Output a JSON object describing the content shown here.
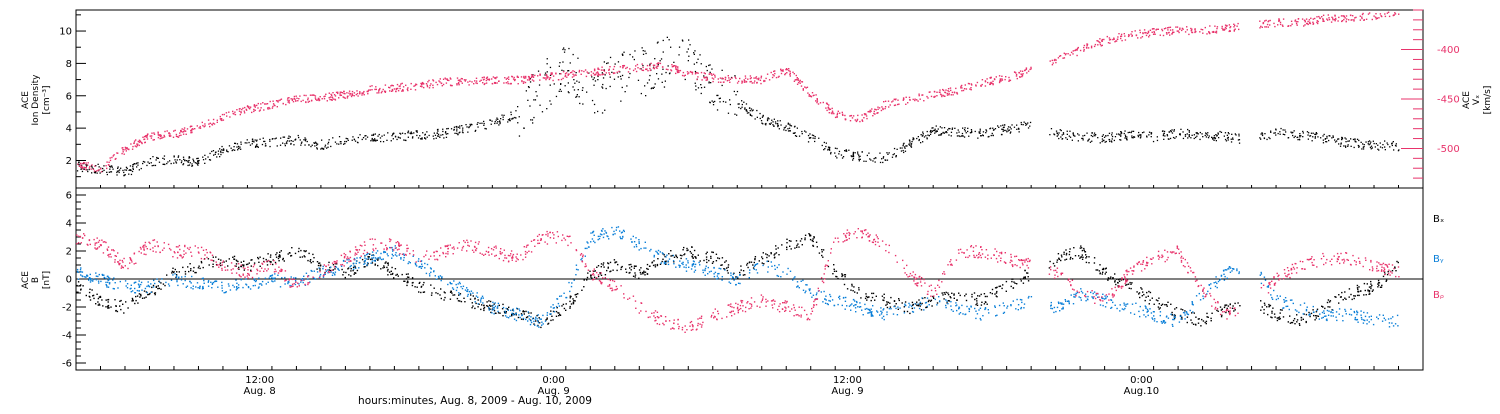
{
  "time_axis": {
    "caption": "hours:minutes, Aug.  8, 2009 - Aug. 10, 2009",
    "range_hours": [
      0,
      55
    ],
    "ticks": [
      {
        "h": 7.5,
        "time": "12:00",
        "date": "Aug. 8"
      },
      {
        "h": 19.5,
        "time": "0:00",
        "date": "Aug. 9"
      },
      {
        "h": 31.5,
        "time": "12:00",
        "date": "Aug. 9"
      },
      {
        "h": 43.5,
        "time": "0:00",
        "date": "Aug.10"
      }
    ]
  },
  "colors": {
    "density": "#000000",
    "vx": "#e8336b",
    "bx": "#000000",
    "by": "#0a7fd8",
    "bz": "#e8336b",
    "axis": "#000000"
  },
  "chart_data": [
    {
      "type": "scatter",
      "panel": "plasma",
      "ylabel_left": [
        "ACE",
        "Ion Density",
        "[cm⁻³]"
      ],
      "ylabel_right": [
        "ACE",
        "Vₓ",
        "[km/s]"
      ],
      "ylim_left": [
        0.3,
        11.3
      ],
      "left_ticks": [
        "2",
        "4",
        "6",
        "8",
        "10"
      ],
      "ylim_right": [
        -540,
        -360
      ],
      "right_ticks": [
        "-400",
        "-450",
        "-500"
      ],
      "series": [
        {
          "axis": "left",
          "x": [
            0,
            1,
            2,
            3,
            4,
            5,
            6,
            7,
            8,
            9,
            10,
            11,
            12,
            13,
            14,
            15,
            16,
            17,
            18,
            19,
            20,
            21,
            22,
            23,
            24,
            25,
            26,
            27,
            28,
            29,
            30,
            31,
            32,
            33,
            34,
            35,
            36,
            37,
            38,
            39,
            40,
            41,
            42,
            43,
            44,
            45,
            46,
            47,
            48,
            49,
            50,
            51,
            52,
            53,
            54
          ],
          "values": [
            1.7,
            1.5,
            1.3,
            2.0,
            2.1,
            1.9,
            2.7,
            3.1,
            3.2,
            3.3,
            3.0,
            3.3,
            3.4,
            3.5,
            3.6,
            3.7,
            4.0,
            4.3,
            5.0,
            6.5,
            7.8,
            6.0,
            7.2,
            7.5,
            8.0,
            8.5,
            6.5,
            5.6,
            4.6,
            4.1,
            3.4,
            2.5,
            2.3,
            2.2,
            3.0,
            3.9,
            3.8,
            3.7,
            4.0,
            4.2,
            3.7,
            3.5,
            3.4,
            3.6,
            3.5,
            3.7,
            3.6,
            3.5,
            3.3,
            3.8,
            3.6,
            3.4,
            3.1,
            3.0,
            2.9
          ]
        },
        {
          "axis": "right",
          "x": [
            0,
            1,
            2,
            3,
            4,
            5,
            6,
            7,
            8,
            9,
            10,
            11,
            12,
            13,
            14,
            15,
            16,
            17,
            18,
            19,
            20,
            21,
            22,
            23,
            24,
            25,
            26,
            27,
            28,
            29,
            30,
            31,
            32,
            33,
            34,
            35,
            36,
            37,
            38,
            39,
            40,
            41,
            42,
            43,
            44,
            45,
            46,
            47,
            48,
            49,
            50,
            51,
            52,
            53,
            54
          ],
          "values": [
            -515,
            -520,
            -500,
            -487,
            -485,
            -478,
            -468,
            -460,
            -455,
            -450,
            -448,
            -445,
            -440,
            -438,
            -436,
            -432,
            -432,
            -430,
            -430,
            -428,
            -425,
            -422,
            -420,
            -418,
            -415,
            -425,
            -428,
            -430,
            -430,
            -420,
            -445,
            -465,
            -470,
            -455,
            -450,
            -445,
            -440,
            -433,
            -428,
            -420,
            -410,
            -400,
            -390,
            -385,
            -382,
            -380,
            -380,
            -378,
            -375,
            -372,
            -372,
            -368,
            -368,
            -365,
            -360
          ]
        }
      ]
    },
    {
      "type": "scatter",
      "panel": "field",
      "ylabel_left": [
        "ACE",
        "B",
        "[nT]"
      ],
      "ylim": [
        -6.5,
        6.5
      ],
      "left_ticks": [
        "-6",
        "-4",
        "-2",
        "0",
        "2",
        "4",
        "6"
      ],
      "series": [
        {
          "name": "Bₓ",
          "x": [
            0,
            1,
            2,
            3,
            4,
            5,
            6,
            7,
            8,
            9,
            10,
            11,
            12,
            13,
            14,
            15,
            16,
            17,
            18,
            19,
            20,
            21,
            22,
            23,
            24,
            25,
            26,
            27,
            28,
            29,
            30,
            31,
            32,
            33,
            34,
            35,
            36,
            37,
            38,
            39,
            40,
            41,
            42,
            43,
            44,
            45,
            46,
            47,
            48,
            49,
            50,
            51,
            52,
            53,
            54
          ],
          "values": [
            -0.5,
            -1.5,
            -2.0,
            -1.0,
            0.5,
            1.0,
            1.5,
            1.0,
            1.5,
            2.0,
            1.0,
            0.5,
            1.5,
            0.5,
            -0.5,
            -1.0,
            -1.5,
            -2.0,
            -2.5,
            -3.0,
            -2.0,
            0.5,
            1.0,
            0.5,
            1.5,
            2.0,
            1.5,
            0.5,
            1.5,
            2.5,
            3.0,
            0.5,
            -1.0,
            -1.5,
            -2.0,
            -1.5,
            -1.0,
            -1.5,
            -0.5,
            0.5,
            1.5,
            2.0,
            0.5,
            -0.5,
            -1.5,
            -2.5,
            -3.0,
            -2.0,
            -1.5,
            -2.5,
            -3.0,
            -2.0,
            -1.0,
            -0.5,
            1.0
          ]
        },
        {
          "name": "Bᵧ",
          "x": [
            0,
            1,
            2,
            3,
            4,
            5,
            6,
            7,
            8,
            9,
            10,
            11,
            12,
            13,
            14,
            15,
            16,
            17,
            18,
            19,
            20,
            21,
            22,
            23,
            24,
            25,
            26,
            27,
            28,
            29,
            30,
            31,
            32,
            33,
            34,
            35,
            36,
            37,
            38,
            39,
            40,
            41,
            42,
            43,
            44,
            45,
            46,
            47,
            48,
            49,
            50,
            51,
            52,
            53,
            54
          ],
          "values": [
            0.5,
            0.0,
            -0.5,
            -0.5,
            0.0,
            -0.3,
            -0.5,
            -0.3,
            0.0,
            -0.2,
            0.5,
            1.0,
            1.5,
            2.0,
            1.0,
            0.0,
            -1.0,
            -2.0,
            -2.5,
            -3.0,
            -1.0,
            3.0,
            3.5,
            2.5,
            1.5,
            1.0,
            0.5,
            0.0,
            1.0,
            0.5,
            -1.0,
            -1.5,
            -2.0,
            -2.5,
            -2.0,
            -1.5,
            -2.0,
            -2.5,
            -2.0,
            -1.5,
            -2.0,
            -1.0,
            -1.5,
            -2.0,
            -2.5,
            -3.0,
            -1.0,
            0.5,
            1.0,
            -1.5,
            -2.0,
            -2.5,
            -2.5,
            -2.8,
            -3.0
          ]
        },
        {
          "name": "Bᵨ",
          "x": [
            0,
            1,
            2,
            3,
            4,
            5,
            6,
            7,
            8,
            9,
            10,
            11,
            12,
            13,
            14,
            15,
            16,
            17,
            18,
            19,
            20,
            21,
            22,
            23,
            24,
            25,
            26,
            27,
            28,
            29,
            30,
            31,
            32,
            33,
            34,
            35,
            36,
            37,
            38,
            39,
            40,
            41,
            42,
            43,
            44,
            45,
            46,
            47,
            48,
            49,
            50,
            51,
            52,
            53,
            54
          ],
          "values": [
            3.0,
            2.5,
            1.0,
            2.5,
            2.0,
            2.0,
            1.0,
            0.5,
            1.0,
            -0.5,
            0.5,
            1.5,
            2.5,
            2.5,
            1.5,
            2.0,
            2.5,
            2.0,
            1.5,
            3.0,
            3.0,
            0.5,
            -0.5,
            -2.0,
            -3.0,
            -3.5,
            -2.5,
            -2.0,
            -1.5,
            -2.0,
            -2.5,
            3.0,
            3.5,
            2.5,
            0.5,
            -1.0,
            2.0,
            2.0,
            1.5,
            1.0,
            0.5,
            -1.0,
            -1.5,
            0.5,
            1.5,
            2.0,
            -1.0,
            -2.5,
            -1.5,
            0.0,
            1.0,
            1.5,
            1.5,
            1.0,
            0.5
          ]
        }
      ]
    }
  ]
}
